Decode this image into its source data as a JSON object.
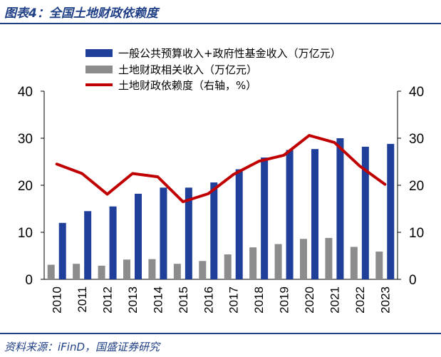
{
  "figure": {
    "title": "图表4：全国土地财政依赖度",
    "source": "资料来源：iFinD，国盛证券研究"
  },
  "colors": {
    "budget_bar": "#1f3f9a",
    "land_bar": "#8c8c8c",
    "line": "#c00000",
    "title": "#1f3f86"
  },
  "chart_data": {
    "type": "bar",
    "categories": [
      "2010",
      "2011",
      "2012",
      "2013",
      "2014",
      "2015",
      "2016",
      "2017",
      "2018",
      "2019",
      "2020",
      "2021",
      "2022",
      "2023"
    ],
    "series": [
      {
        "name": "一般公共预算收入+政府性基金收入（万亿元）",
        "kind": "bar",
        "axis": "left",
        "values": [
          12.0,
          14.5,
          15.5,
          18.2,
          19.5,
          19.5,
          20.6,
          23.4,
          25.9,
          27.5,
          27.7,
          30.0,
          28.2,
          28.8
        ]
      },
      {
        "name": "土地财政相关收入（万亿元）",
        "kind": "bar",
        "axis": "left",
        "values": [
          3.1,
          3.3,
          2.9,
          4.2,
          4.3,
          3.3,
          3.9,
          5.3,
          6.8,
          7.5,
          8.6,
          8.8,
          6.9,
          5.9
        ]
      },
      {
        "name": "土地财政依赖度（右轴，%）",
        "kind": "line",
        "axis": "right",
        "values": [
          24.5,
          22.5,
          18.1,
          22.5,
          21.8,
          16.5,
          18.2,
          22.3,
          25.1,
          26.4,
          30.6,
          29.1,
          24.1,
          20.2
        ]
      }
    ],
    "y_left": {
      "min": 0,
      "max": 40,
      "ticks": [
        0,
        10,
        20,
        30,
        40
      ]
    },
    "y_right": {
      "min": 0,
      "max": 40,
      "ticks": [
        0,
        10,
        20,
        30,
        40
      ]
    },
    "legend_position": "top"
  }
}
